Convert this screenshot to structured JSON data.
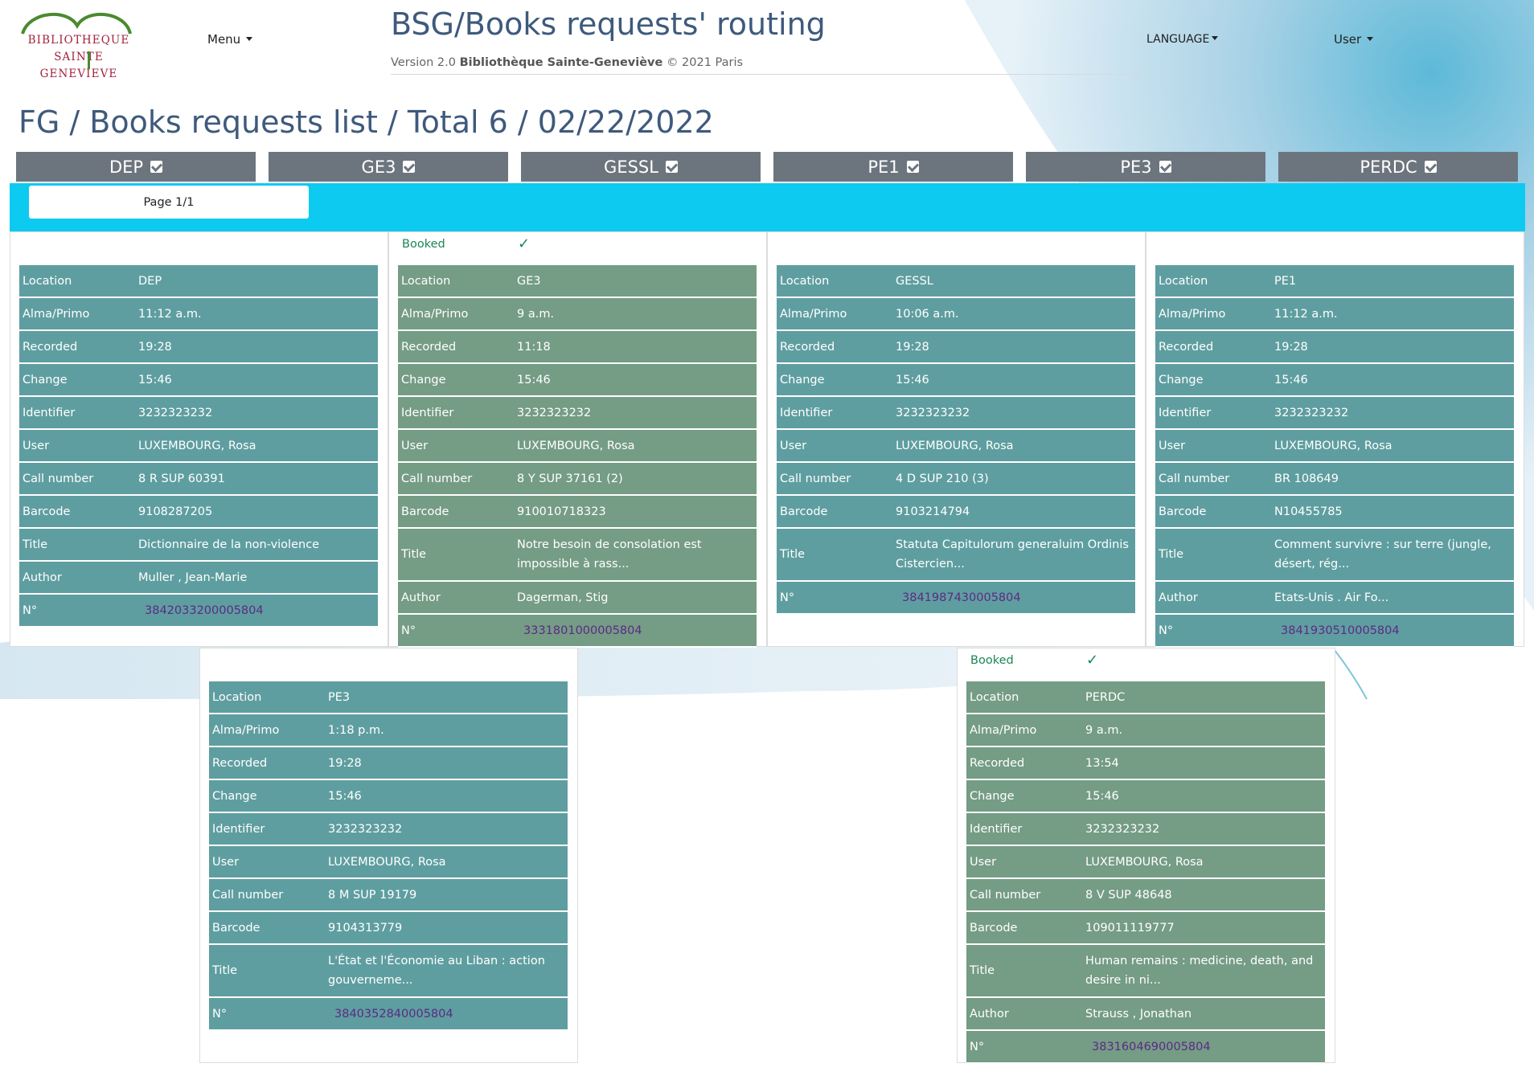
{
  "header": {
    "logo_lines": [
      "BIBLIOTHEQUE",
      "SAINTE",
      "GENEVIEVE"
    ],
    "menu_label": "Menu",
    "app_title": "BSG/Books requests' routing",
    "version_prefix": "Version 2.0",
    "version_bold": "Bibliothèque Sainte-Geneviève",
    "version_suffix": "© 2021 Paris",
    "language_label": "LANGUAGE",
    "user_label": "User"
  },
  "page_heading": "FG / Books requests list / Total 6 / 02/22/2022",
  "filters": [
    {
      "label": "DEP",
      "checked": true
    },
    {
      "label": "GE3",
      "checked": true
    },
    {
      "label": "GESSL",
      "checked": true
    },
    {
      "label": "PE1",
      "checked": true
    },
    {
      "label": "PE3",
      "checked": true
    },
    {
      "label": "PERDC",
      "checked": true
    }
  ],
  "pagination": {
    "label": "Page 1/1"
  },
  "colors": {
    "teal": "#5f9ea0",
    "green": "#759c85",
    "filter_btn": "#6c757d",
    "band": "#0dcaf0",
    "heading": "#3e5a7c",
    "link": "#5b2a86",
    "booked": "#198754"
  },
  "cards": [
    {
      "booked": false,
      "booked_label": "",
      "tick": "",
      "rows": [
        {
          "k": "Location",
          "v": "DEP"
        },
        {
          "k": "Alma/Primo",
          "v": "11:12 a.m."
        },
        {
          "k": "Recorded",
          "v": "19:28"
        },
        {
          "k": "Change",
          "v": "15:46"
        },
        {
          "k": "Identifier",
          "v": "3232323232"
        },
        {
          "k": "User",
          "v": "LUXEMBOURG, Rosa"
        },
        {
          "k": "Call number",
          "v": "8 R SUP 60391"
        },
        {
          "k": "Barcode",
          "v": "9108287205"
        },
        {
          "k": "Title",
          "v": "Dictionnaire de la non-violence"
        },
        {
          "k": "Author",
          "v": "Muller , Jean-Marie"
        },
        {
          "k": "N°",
          "v": "3842033200005804",
          "link": true
        }
      ]
    },
    {
      "booked": true,
      "booked_label": "Booked",
      "tick": "✓",
      "rows": [
        {
          "k": "Location",
          "v": "GE3"
        },
        {
          "k": "Alma/Primo",
          "v": "9 a.m."
        },
        {
          "k": "Recorded",
          "v": "11:18"
        },
        {
          "k": "Change",
          "v": "15:46"
        },
        {
          "k": "Identifier",
          "v": "3232323232"
        },
        {
          "k": "User",
          "v": "LUXEMBOURG, Rosa"
        },
        {
          "k": "Call number",
          "v": "8 Y SUP 37161 (2)"
        },
        {
          "k": "Barcode",
          "v": "910010718323"
        },
        {
          "k": "Title",
          "v": "Notre besoin de consolation est impossible à rass..."
        },
        {
          "k": "Author",
          "v": "Dagerman, Stig"
        },
        {
          "k": "N°",
          "v": "3331801000005804",
          "link": true
        }
      ]
    },
    {
      "booked": false,
      "booked_label": "",
      "tick": "",
      "rows": [
        {
          "k": "Location",
          "v": "GESSL"
        },
        {
          "k": "Alma/Primo",
          "v": "10:06 a.m."
        },
        {
          "k": "Recorded",
          "v": "19:28"
        },
        {
          "k": "Change",
          "v": "15:46"
        },
        {
          "k": "Identifier",
          "v": "3232323232"
        },
        {
          "k": "User",
          "v": "LUXEMBOURG, Rosa"
        },
        {
          "k": "Call number",
          "v": "4 D SUP 210 (3)"
        },
        {
          "k": "Barcode",
          "v": "9103214794"
        },
        {
          "k": "Title",
          "v": "Statuta Capitulorum generaluim Ordinis Cistercien..."
        },
        {
          "k": "N°",
          "v": "3841987430005804",
          "link": true
        }
      ]
    },
    {
      "booked": false,
      "booked_label": "",
      "tick": "",
      "rows": [
        {
          "k": "Location",
          "v": "PE1"
        },
        {
          "k": "Alma/Primo",
          "v": "11:12 a.m."
        },
        {
          "k": "Recorded",
          "v": "19:28"
        },
        {
          "k": "Change",
          "v": "15:46"
        },
        {
          "k": "Identifier",
          "v": "3232323232"
        },
        {
          "k": "User",
          "v": "LUXEMBOURG, Rosa"
        },
        {
          "k": "Call number",
          "v": "BR 108649"
        },
        {
          "k": "Barcode",
          "v": "N10455785"
        },
        {
          "k": "Title",
          "v": "Comment survivre : sur terre (jungle, désert, rég..."
        },
        {
          "k": "Author",
          "v": "Etats-Unis . Air Fo..."
        },
        {
          "k": "N°",
          "v": "3841930510005804",
          "link": true
        }
      ]
    },
    {
      "booked": false,
      "booked_label": "",
      "tick": "",
      "rows": [
        {
          "k": "Location",
          "v": "PE3"
        },
        {
          "k": "Alma/Primo",
          "v": "1:18 p.m."
        },
        {
          "k": "Recorded",
          "v": "19:28"
        },
        {
          "k": "Change",
          "v": "15:46"
        },
        {
          "k": "Identifier",
          "v": "3232323232"
        },
        {
          "k": "User",
          "v": "LUXEMBOURG, Rosa"
        },
        {
          "k": "Call number",
          "v": "8 M SUP 19179"
        },
        {
          "k": "Barcode",
          "v": "9104313779"
        },
        {
          "k": "Title",
          "v": "L'État et l'Économie au Liban : action gouverneme..."
        },
        {
          "k": "N°",
          "v": "3840352840005804",
          "link": true
        }
      ]
    },
    {
      "booked": true,
      "booked_label": "Booked",
      "tick": "✓",
      "rows": [
        {
          "k": "Location",
          "v": "PERDC"
        },
        {
          "k": "Alma/Primo",
          "v": "9 a.m."
        },
        {
          "k": "Recorded",
          "v": "13:54"
        },
        {
          "k": "Change",
          "v": "15:46"
        },
        {
          "k": "Identifier",
          "v": "3232323232"
        },
        {
          "k": "User",
          "v": "LUXEMBOURG, Rosa"
        },
        {
          "k": "Call number",
          "v": "8 V SUP 48648"
        },
        {
          "k": "Barcode",
          "v": "109011119777"
        },
        {
          "k": "Title",
          "v": "Human remains : medicine, death, and desire in ni..."
        },
        {
          "k": "Author",
          "v": "Strauss , Jonathan"
        },
        {
          "k": "N°",
          "v": "3831604690005804",
          "link": true
        }
      ]
    }
  ]
}
